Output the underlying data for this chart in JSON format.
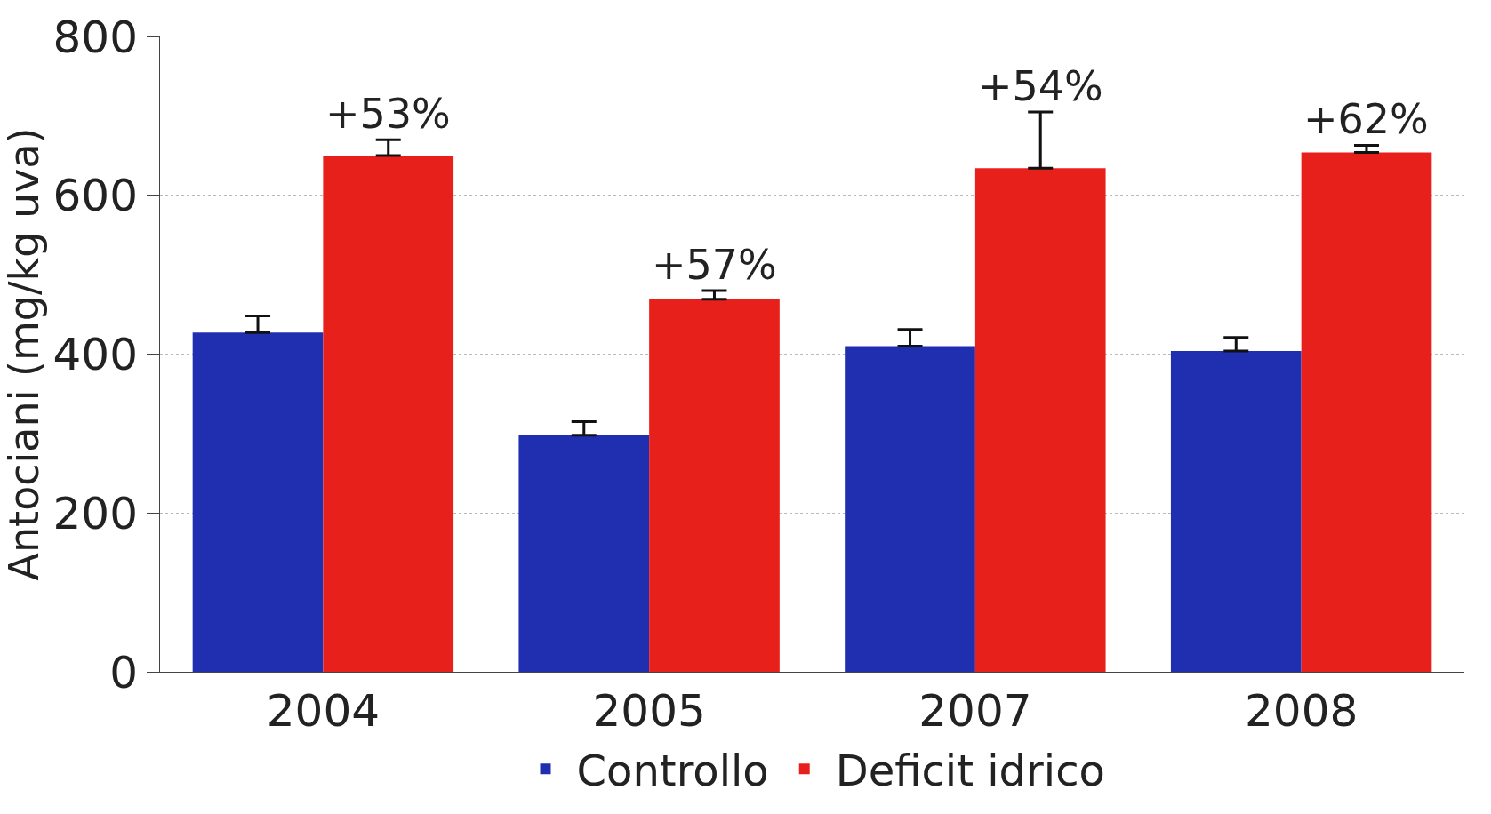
{
  "chart_data": {
    "type": "bar",
    "ylabel": "Antociani (mg/kg uva)",
    "categories": [
      "2004",
      "2005",
      "2007",
      "2008"
    ],
    "series": [
      {
        "name": "Controllo",
        "color": "#1f2fb0",
        "values": [
          427,
          298,
          410,
          404
        ],
        "errors": [
          [
            427,
            448
          ],
          [
            298,
            315
          ],
          [
            410,
            431
          ],
          [
            404,
            421
          ]
        ]
      },
      {
        "name": "Deficit idrico",
        "color": "#e8201c",
        "values": [
          650,
          469,
          634,
          654
        ],
        "errors": [
          [
            650,
            670
          ],
          [
            469,
            480
          ],
          [
            634,
            705
          ],
          [
            654,
            663
          ]
        ]
      }
    ],
    "annotations": [
      "+53%",
      "+57%",
      "+54%",
      "+62%"
    ],
    "ylim": [
      0,
      800
    ],
    "yticks": [
      0,
      200,
      400,
      600,
      800
    ],
    "grid": "y",
    "legend": "bottom"
  }
}
